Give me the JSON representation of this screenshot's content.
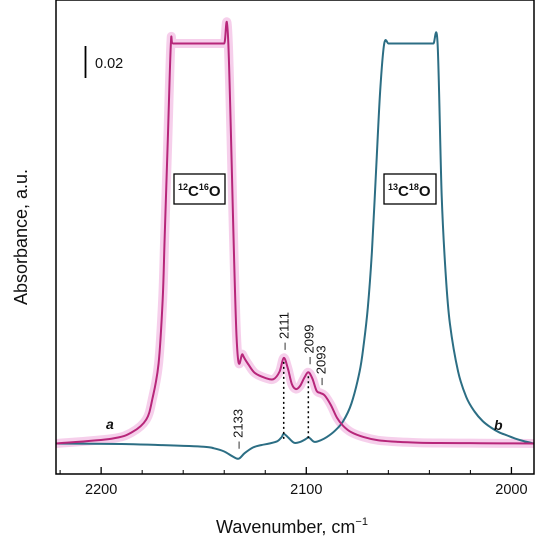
{
  "chart_data": {
    "type": "line",
    "title": "",
    "xlabel": "Wavenumber, cm",
    "xlabel_superscript": "−1",
    "ylabel": "Absorbance, a.u.",
    "xlim": [
      2222,
      1989
    ],
    "x_reversed": true,
    "yticks_shown": false,
    "xticks": [
      2200,
      2100,
      2000
    ],
    "xtick_labels": [
      "2200",
      "2100",
      "2000"
    ],
    "scale_bar": {
      "label": "0.02",
      "value": 0.02
    },
    "colors": {
      "a": "#b7267a",
      "b": "#2c6e84",
      "a_shade": "#f4c3e6",
      "axis": "#000000"
    },
    "series": [
      {
        "id": "a",
        "x": [
          2222,
          2195,
          2185,
          2178,
          2175,
          2172,
          2170,
          2169,
          2167.5,
          2166,
          2165,
          2160,
          2155,
          2150,
          2143,
          2140,
          2138,
          2134,
          2131,
          2128,
          2125,
          2120,
          2116,
          2113,
          2111,
          2109,
          2107,
          2105,
          2103,
          2101,
          2099,
          2097,
          2095,
          2093,
          2091,
          2088,
          2085,
          2082,
          2078,
          2072,
          2065,
          2055,
          2045,
          2035,
          2020,
          2005,
          1989
        ],
        "y": [
          0.0,
          0.003,
          0.007,
          0.015,
          0.028,
          0.05,
          0.09,
          0.13,
          0.19,
          0.25,
          0.25,
          0.25,
          0.25,
          0.25,
          0.25,
          0.25,
          0.25,
          0.067,
          0.0555,
          0.049,
          0.044,
          0.041,
          0.0402,
          0.045,
          0.0535,
          0.047,
          0.037,
          0.034,
          0.036,
          0.041,
          0.0445,
          0.0405,
          0.033,
          0.0315,
          0.03,
          0.024,
          0.016,
          0.011,
          0.007,
          0.004,
          0.002,
          0.001,
          0.0005,
          0.0003,
          0.0002,
          0.0001,
          0.0
        ]
      },
      {
        "id": "b",
        "x": [
          2222,
          2190,
          2170,
          2150,
          2145,
          2140,
          2136,
          2133,
          2130,
          2126,
          2122,
          2118,
          2114,
          2112,
          2111,
          2109,
          2106,
          2103,
          2100,
          2099,
          2098,
          2096,
          2093,
          2090,
          2086,
          2082,
          2078,
          2074,
          2072,
          2070,
          2068,
          2066,
          2064,
          2062,
          2060,
          2058,
          2040,
          2038,
          2036,
          2034,
          2032,
          2030,
          2026,
          2022,
          2018,
          2014,
          2010,
          2006,
          2002,
          1998,
          1994,
          1989
        ],
        "y": [
          0.0,
          -0.0003,
          -0.001,
          -0.002,
          -0.003,
          -0.005,
          -0.008,
          -0.0095,
          -0.006,
          -0.0025,
          -0.001,
          0.0,
          0.0015,
          0.004,
          0.006,
          0.004,
          0.0005,
          0.001,
          0.003,
          0.004,
          0.003,
          0.001,
          0.002,
          0.004,
          0.008,
          0.014,
          0.025,
          0.045,
          0.062,
          0.085,
          0.12,
          0.17,
          0.22,
          0.25,
          0.25,
          0.25,
          0.25,
          0.25,
          0.25,
          0.155,
          0.105,
          0.075,
          0.045,
          0.029,
          0.02,
          0.014,
          0.01,
          0.007,
          0.005,
          0.003,
          0.0015,
          0.0
        ]
      }
    ],
    "series_tags": [
      {
        "text": "a",
        "series": "a"
      },
      {
        "text": "b",
        "series": "b"
      }
    ],
    "isotope_labels": [
      {
        "id": "12c16o",
        "mass_c": "12",
        "el_c": "C",
        "mass_o": "16",
        "el_o": "O"
      },
      {
        "id": "13c18o",
        "mass_c": "13",
        "el_c": "C",
        "mass_o": "18",
        "el_o": "O"
      }
    ],
    "peak_annotations": [
      {
        "label": "2133",
        "x": 2133,
        "y": -0.0095,
        "series": "b",
        "dotted": false
      },
      {
        "label": "2111",
        "x": 2111,
        "y": 0.0535,
        "series": "a",
        "dotted": true
      },
      {
        "label": "2099",
        "x": 2099,
        "y": 0.0445,
        "series": "a",
        "dotted": true
      },
      {
        "label": "2093",
        "x": 2093,
        "y": 0.0315,
        "series": "a",
        "dotted": false
      }
    ]
  }
}
